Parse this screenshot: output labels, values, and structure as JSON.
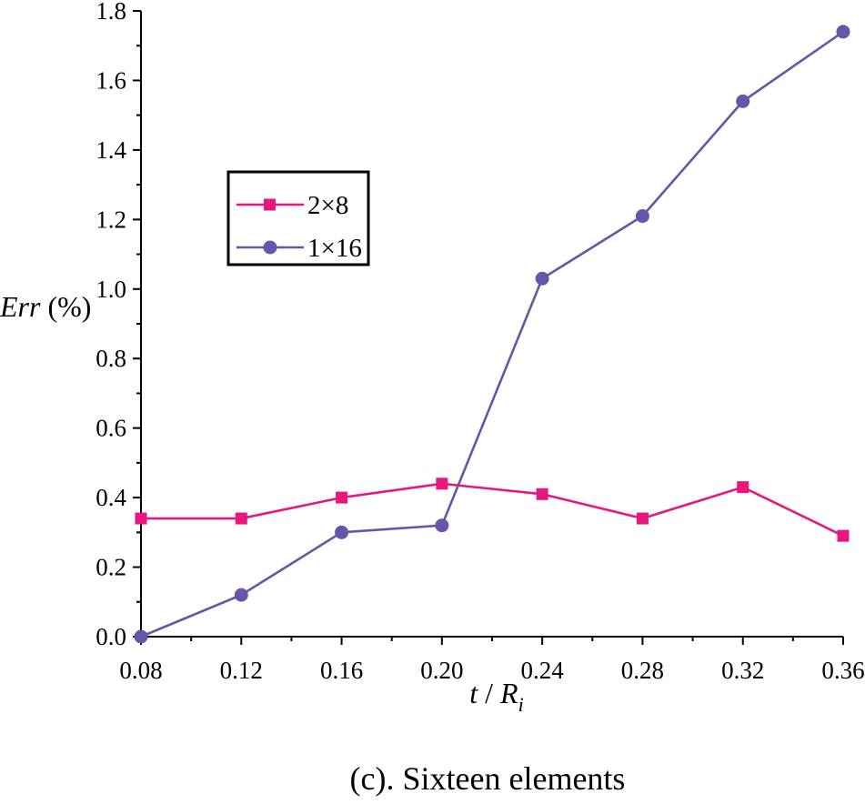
{
  "chart_data": {
    "type": "line",
    "caption": "(c). Sixteen elements",
    "xlabel_main": "t",
    "xlabel_sep": " / ",
    "xlabel_var": "R",
    "xlabel_sub": "i",
    "ylabel_main": "Err",
    "ylabel_unit": " (%)",
    "x": [
      0.08,
      0.12,
      0.16,
      0.2,
      0.24,
      0.28,
      0.32,
      0.36
    ],
    "x_tick_labels": [
      "0.08",
      "0.12",
      "0.16",
      "0.20",
      "0.24",
      "0.28",
      "0.32",
      "0.36"
    ],
    "xlim": [
      0.08,
      0.36
    ],
    "ylim": [
      0.0,
      1.8
    ],
    "y_ticks": [
      0.0,
      0.2,
      0.4,
      0.6,
      0.8,
      1.0,
      1.2,
      1.4,
      1.6,
      1.8
    ],
    "y_tick_labels": [
      "0.0",
      "0.2",
      "0.4",
      "0.6",
      "0.8",
      "1.0",
      "1.2",
      "1.4",
      "1.6",
      "1.8"
    ],
    "grid": false,
    "legend_position": "upper-left",
    "series": [
      {
        "name": "2×8",
        "marker": "square",
        "color": "#e6177e",
        "values": [
          0.34,
          0.34,
          0.4,
          0.44,
          0.41,
          0.34,
          0.43,
          0.29
        ]
      },
      {
        "name": "1×16",
        "marker": "circle",
        "color": "#6655a8",
        "values": [
          0.0,
          0.12,
          0.3,
          0.32,
          1.03,
          1.21,
          1.54,
          1.74
        ]
      }
    ]
  }
}
